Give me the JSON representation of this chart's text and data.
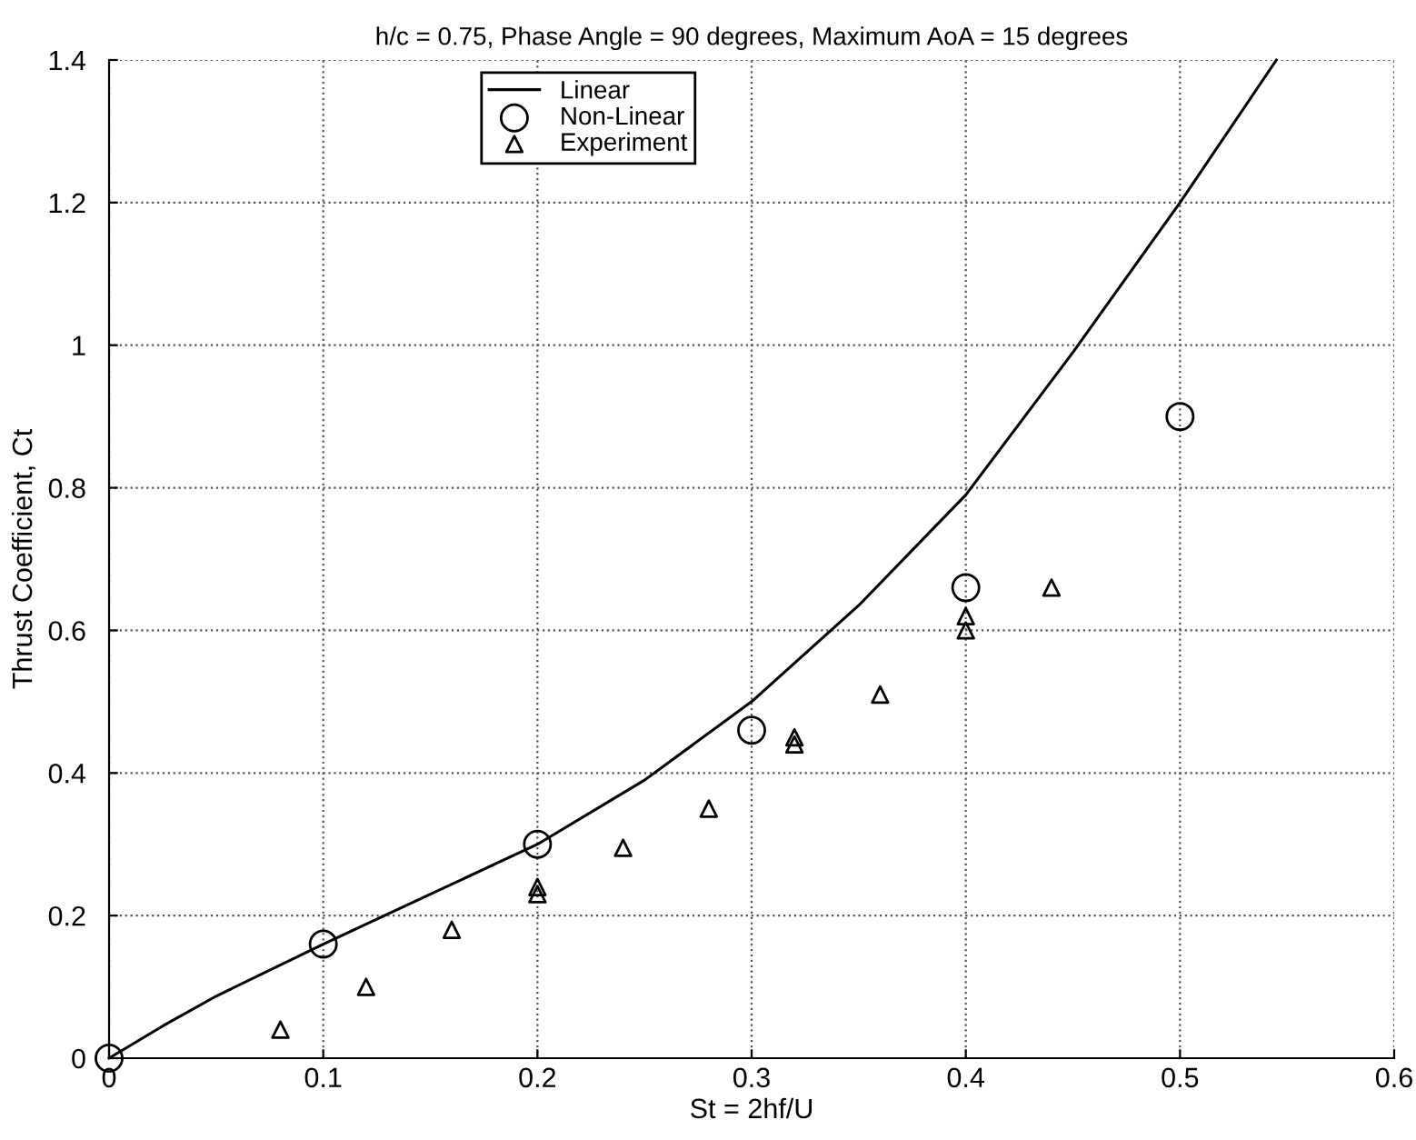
{
  "chart_data": {
    "type": "line",
    "title": "h/c = 0.75, Phase Angle = 90 degrees, Maximum AoA = 15 degrees",
    "xlabel": "St = 2hf/U",
    "ylabel": "Thrust Coefficient, Ct",
    "series": [
      {
        "name": "Linear",
        "color": "#000000",
        "marker": "none",
        "line_style": "solid",
        "x": [
          0,
          0.025,
          0.05,
          0.1,
          0.15,
          0.2,
          0.25,
          0.3,
          0.35,
          0.4,
          0.45,
          0.5,
          0.545
        ],
        "values": [
          0,
          0.045,
          0.087,
          0.16,
          0.23,
          0.3,
          0.39,
          0.5,
          0.635,
          0.79,
          0.99,
          1.2,
          1.4
        ]
      },
      {
        "name": "Non-Linear",
        "type": "scatter",
        "color": "#000000",
        "marker": "circle",
        "x": [
          0,
          0.1,
          0.2,
          0.3,
          0.4,
          0.5
        ],
        "values": [
          0,
          0.16,
          0.3,
          0.46,
          0.66,
          0.9
        ]
      },
      {
        "name": "Experiment",
        "type": "scatter",
        "color": "#000000",
        "marker": "triangle",
        "x": [
          0.08,
          0.12,
          0.16,
          0.2,
          0.2,
          0.24,
          0.28,
          0.32,
          0.32,
          0.36,
          0.4,
          0.4,
          0.44
        ],
        "values": [
          0.04,
          0.1,
          0.18,
          0.23,
          0.24,
          0.295,
          0.35,
          0.44,
          0.45,
          0.51,
          0.6,
          0.62,
          0.66
        ]
      }
    ],
    "xlim": [
      0,
      0.6
    ],
    "xticks": [
      0,
      0.1,
      0.2,
      0.3,
      0.4,
      0.5,
      0.6
    ],
    "ylim": [
      0,
      1.4
    ],
    "yticks": [
      0,
      0.2,
      0.4,
      0.6,
      0.8,
      1,
      1.2,
      1.4
    ],
    "grid": true,
    "legend": "top left"
  }
}
